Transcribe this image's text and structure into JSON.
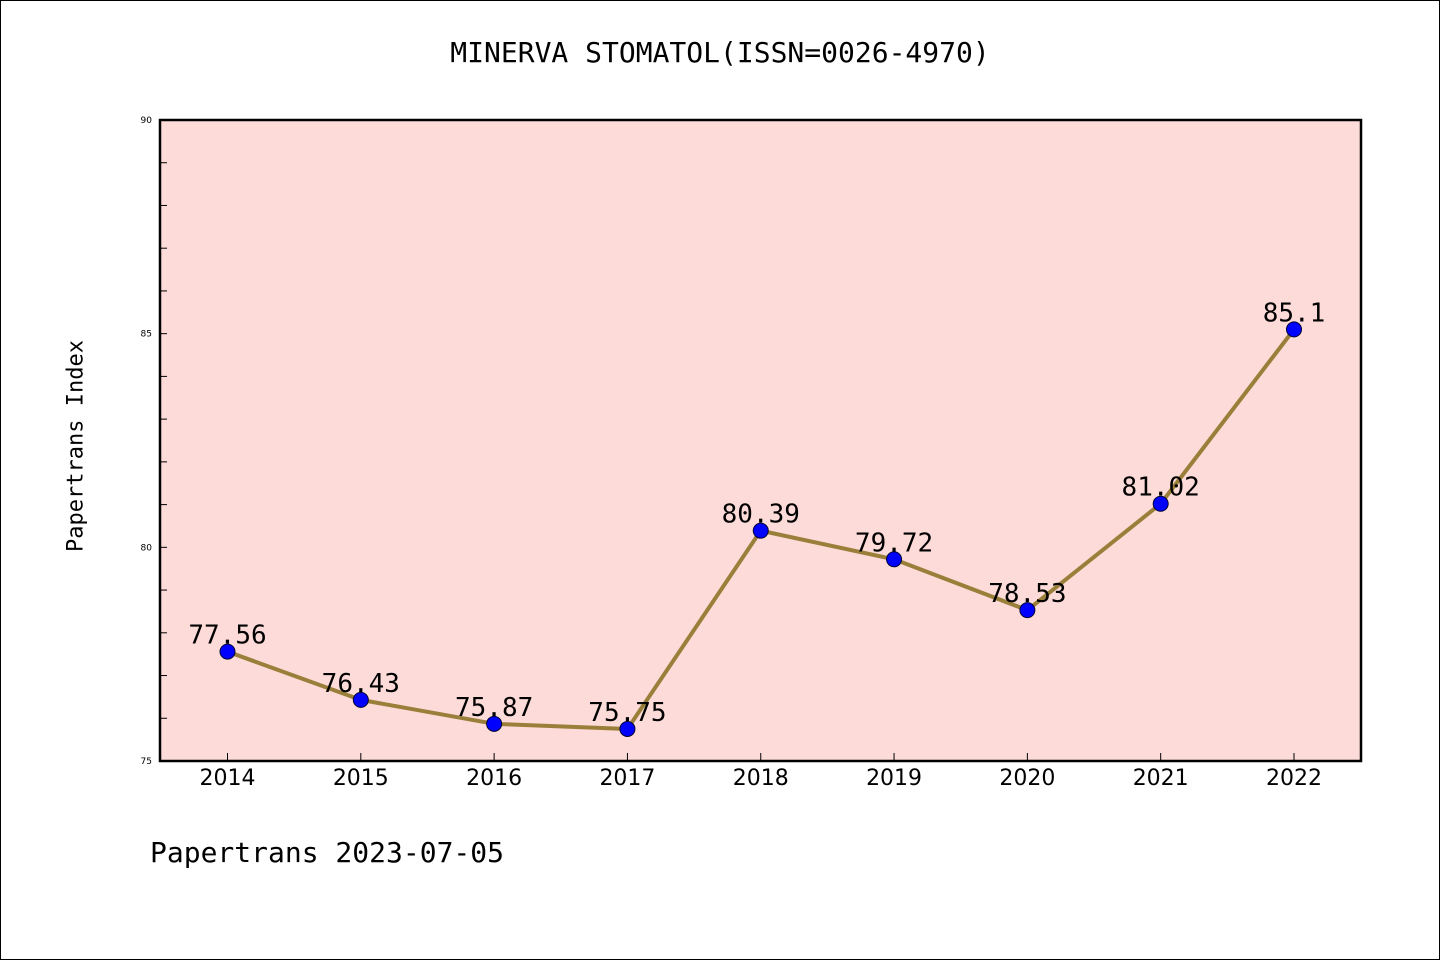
{
  "chart_data": {
    "type": "line",
    "title": "MINERVA STOMATOL(ISSN=0026-4970)",
    "ylabel": "Papertrans Index",
    "xlabel": "",
    "categories": [
      "2014",
      "2015",
      "2016",
      "2017",
      "2018",
      "2019",
      "2020",
      "2021",
      "2022"
    ],
    "series": [
      {
        "values": [
          77.56,
          76.43,
          75.87,
          75.75,
          80.39,
          79.72,
          78.53,
          81.02,
          85.1
        ],
        "labels": [
          "77.56",
          "76.43",
          "75.87",
          "75.75",
          "80.39",
          "79.72",
          "78.53",
          "81.02",
          "85.1"
        ]
      }
    ],
    "ylim": [
      75,
      90
    ],
    "yticks": [
      "75",
      "80",
      "85",
      "90"
    ],
    "grid": false,
    "colors": {
      "line": "#9a7f3a",
      "marker": "#0000ff",
      "plot_background": "#fddbd8"
    }
  },
  "footer": "Papertrans 2023-07-05"
}
